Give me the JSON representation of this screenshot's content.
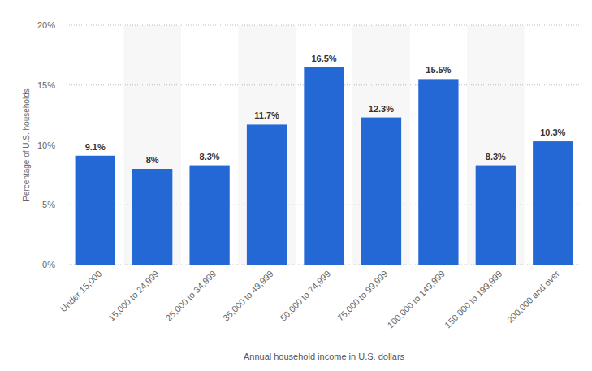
{
  "chart_data": {
    "type": "bar",
    "categories": [
      "Under 15,000",
      "15,000 to 24,999",
      "25,000 to 34,999",
      "35,000 to 49,999",
      "50,000 to 74,999",
      "75,000 to 99,999",
      "100,000 to 149,999",
      "150,000 to 199,999",
      "200,000 and over"
    ],
    "values": [
      9.1,
      8,
      8.3,
      11.7,
      16.5,
      12.3,
      15.5,
      8.3,
      10.3
    ],
    "value_labels": [
      "9.1%",
      "8%",
      "8.3%",
      "11.7%",
      "16.5%",
      "12.3%",
      "15.5%",
      "8.3%",
      "10.3%"
    ],
    "color": "#2468d6",
    "x_label": "Annual household income in U.S. dollars",
    "y_label": "Percentage of U.S. households",
    "ylim": [
      0,
      20
    ],
    "yticks": [
      {
        "value": 0,
        "label": "0%"
      },
      {
        "value": 5,
        "label": "5%"
      },
      {
        "value": 10,
        "label": "10%"
      },
      {
        "value": 15,
        "label": "15%"
      },
      {
        "value": 20,
        "label": "20%"
      }
    ],
    "grid": true,
    "data_labels": true
  }
}
